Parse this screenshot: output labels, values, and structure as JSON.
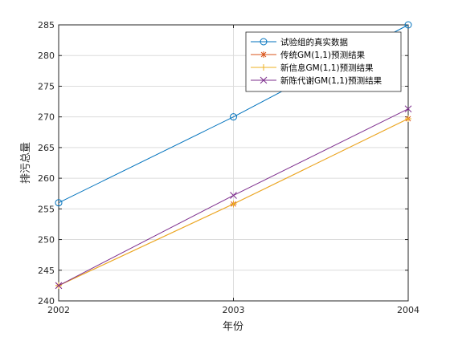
{
  "chart_data": {
    "type": "line",
    "title": "",
    "xlabel": "年份",
    "ylabel": "排污总量",
    "x": [
      2002,
      2003,
      2004
    ],
    "xlim": [
      2002,
      2004
    ],
    "ylim": [
      240,
      285
    ],
    "xticks": [
      2002,
      2003,
      2004
    ],
    "yticks": [
      240,
      245,
      250,
      255,
      260,
      265,
      270,
      275,
      280,
      285
    ],
    "grid": true,
    "legend_position": "top-right",
    "series": [
      {
        "name": "试验组的真实数据",
        "values": [
          256,
          270,
          285
        ],
        "color": "#0072BD",
        "marker": "circle"
      },
      {
        "name": "传统GM(1,1)预测结果",
        "values": [
          242.5,
          255.8,
          269.7
        ],
        "color": "#D95319",
        "marker": "asterisk"
      },
      {
        "name": "新信息GM(1,1)预测结果",
        "values": [
          242.5,
          255.8,
          269.7
        ],
        "color": "#EDB120",
        "marker": "plus"
      },
      {
        "name": "新陈代谢GM(1,1)预测结果",
        "values": [
          242.5,
          257.2,
          271.3
        ],
        "color": "#7E2F8E",
        "marker": "x"
      }
    ]
  }
}
